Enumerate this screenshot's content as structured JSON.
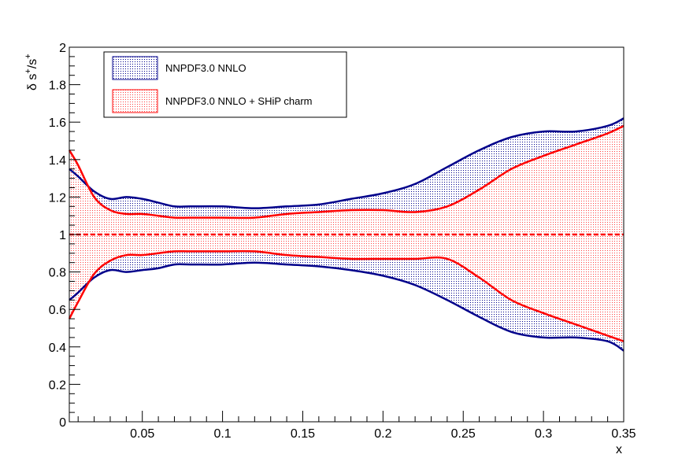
{
  "chart_data": {
    "type": "area",
    "title": "",
    "xlabel": "x",
    "ylabel_base": "δ s",
    "ylabel_sup1": "+",
    "ylabel_mid": "/s",
    "ylabel_sup2": "+",
    "xlim": [
      0.0045,
      0.35
    ],
    "ylim": [
      0,
      2
    ],
    "x_ticks": [
      0.05,
      0.1,
      0.15,
      0.2,
      0.25,
      0.3,
      0.35
    ],
    "x_tick_labels": [
      "0.05",
      "0.1",
      "0.15",
      "0.2",
      "0.25",
      "0.3",
      "0.35"
    ],
    "y_ticks": [
      0,
      0.2,
      0.4,
      0.6,
      0.8,
      1,
      1.2,
      1.4,
      1.6,
      1.8,
      2
    ],
    "y_tick_labels": [
      "0",
      "0.2",
      "0.4",
      "0.6",
      "0.8",
      "1",
      "1.2",
      "1.4",
      "1.6",
      "1.8",
      "2"
    ],
    "reference_line": 1.0,
    "series": [
      {
        "name": "NNPDF3.0 NNLO",
        "color": "#00008b",
        "x": [
          0.0045,
          0.01,
          0.02,
          0.03,
          0.04,
          0.05,
          0.06,
          0.07,
          0.08,
          0.1,
          0.12,
          0.14,
          0.16,
          0.18,
          0.2,
          0.22,
          0.24,
          0.26,
          0.28,
          0.3,
          0.32,
          0.34,
          0.35
        ],
        "upper": [
          1.35,
          1.31,
          1.23,
          1.19,
          1.2,
          1.19,
          1.17,
          1.15,
          1.15,
          1.15,
          1.14,
          1.15,
          1.16,
          1.19,
          1.22,
          1.27,
          1.36,
          1.45,
          1.52,
          1.55,
          1.55,
          1.58,
          1.62
        ],
        "lower": [
          0.65,
          0.69,
          0.77,
          0.81,
          0.8,
          0.81,
          0.82,
          0.84,
          0.84,
          0.84,
          0.85,
          0.84,
          0.83,
          0.81,
          0.78,
          0.73,
          0.65,
          0.56,
          0.48,
          0.45,
          0.45,
          0.43,
          0.38
        ]
      },
      {
        "name": "NNPDF3.0 NNLO + SHiP charm",
        "color": "#ff0000",
        "x": [
          0.0045,
          0.01,
          0.02,
          0.03,
          0.04,
          0.05,
          0.06,
          0.07,
          0.08,
          0.1,
          0.12,
          0.14,
          0.16,
          0.18,
          0.2,
          0.22,
          0.24,
          0.26,
          0.28,
          0.3,
          0.32,
          0.34,
          0.35
        ],
        "upper": [
          1.45,
          1.37,
          1.2,
          1.13,
          1.11,
          1.11,
          1.1,
          1.09,
          1.09,
          1.09,
          1.09,
          1.11,
          1.12,
          1.13,
          1.13,
          1.12,
          1.15,
          1.24,
          1.35,
          1.42,
          1.48,
          1.54,
          1.58
        ],
        "lower": [
          0.55,
          0.64,
          0.79,
          0.86,
          0.89,
          0.89,
          0.9,
          0.91,
          0.91,
          0.91,
          0.91,
          0.89,
          0.88,
          0.87,
          0.87,
          0.87,
          0.87,
          0.77,
          0.65,
          0.58,
          0.52,
          0.46,
          0.43
        ]
      }
    ],
    "legend": {
      "placement": "top-left",
      "entries": [
        "NNPDF3.0 NNLO",
        "NNPDF3.0 NNLO + SHiP charm"
      ]
    }
  }
}
